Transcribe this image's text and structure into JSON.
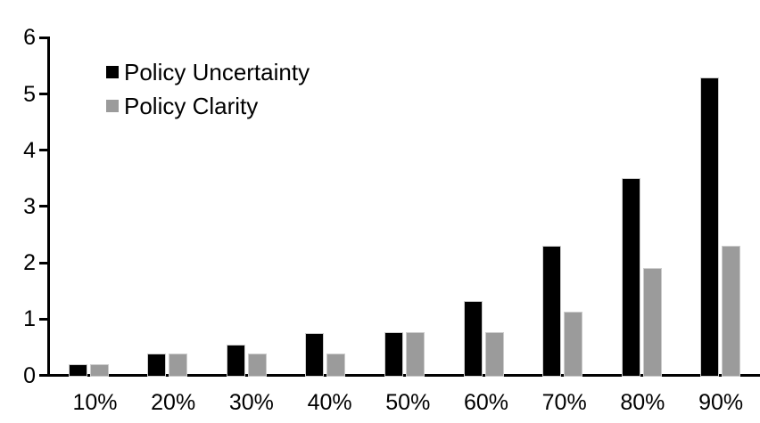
{
  "chart_data": {
    "type": "bar",
    "title": "",
    "xlabel": "",
    "ylabel": "",
    "categories": [
      "10%",
      "20%",
      "30%",
      "40%",
      "50%",
      "60%",
      "70%",
      "80%",
      "90%"
    ],
    "series": [
      {
        "name": "Policy Uncertainty",
        "color": "#000000",
        "values": [
          0.2,
          0.38,
          0.55,
          0.75,
          0.77,
          1.32,
          2.3,
          3.5,
          5.3
        ]
      },
      {
        "name": "Policy Clarity",
        "color": "#9b9b9b",
        "values": [
          0.2,
          0.38,
          0.38,
          0.38,
          0.76,
          0.76,
          1.13,
          1.9,
          2.3
        ]
      }
    ],
    "ylim": [
      0,
      6
    ],
    "yticks": [
      0,
      1,
      2,
      3,
      4,
      5,
      6
    ],
    "grid": false,
    "legend_position": "top-left",
    "axis_color": "#000000",
    "background_color": "#ffffff"
  }
}
